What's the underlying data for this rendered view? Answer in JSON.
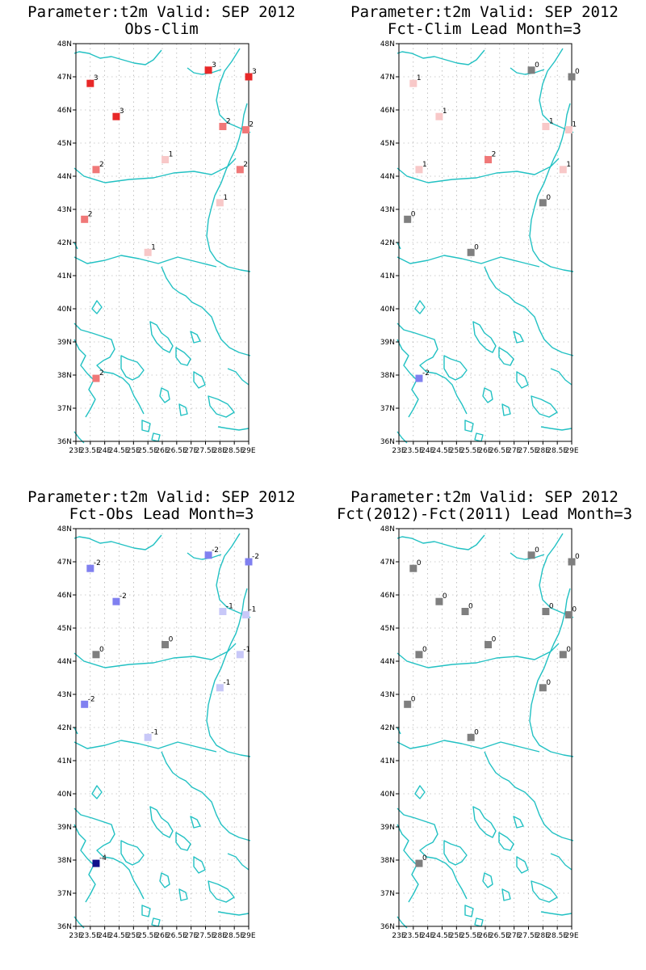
{
  "colors": {
    "coastline": "#22c1c3",
    "zero": "#7f7f7f",
    "warm": [
      "#f8c8c8",
      "#f07878",
      "#e82828"
    ],
    "cool": [
      "#c8c8f8",
      "#8080f0",
      "#5050e8",
      "#10108c"
    ]
  },
  "axes": {
    "lat_ticks": [
      "36N",
      "37N",
      "38N",
      "39N",
      "40N",
      "41N",
      "42N",
      "43N",
      "44N",
      "45N",
      "46N",
      "47N",
      "48N"
    ],
    "lon_ticks": [
      "23E",
      "23.5E",
      "24E",
      "24.5E",
      "25E",
      "25.5E",
      "26E",
      "26.5E",
      "27E",
      "27.5E",
      "28E",
      "28.5E",
      "29E"
    ],
    "lat_range": [
      36,
      48
    ],
    "lon_range": [
      23,
      29
    ]
  },
  "panels": [
    {
      "title_line1": "Parameter:t2m Valid: SEP 2012",
      "title_line2": "Obs-Clim",
      "stations": [
        {
          "lon": 23.5,
          "lat": 46.8,
          "value": "3"
        },
        {
          "lon": 24.4,
          "lat": 45.8,
          "value": "3"
        },
        {
          "lon": 27.6,
          "lat": 47.2,
          "value": "3"
        },
        {
          "lon": 29.0,
          "lat": 47.0,
          "value": "3"
        },
        {
          "lon": 28.1,
          "lat": 45.5,
          "value": "2"
        },
        {
          "lon": 28.9,
          "lat": 45.4,
          "value": "2"
        },
        {
          "lon": 23.7,
          "lat": 44.2,
          "value": "2"
        },
        {
          "lon": 26.1,
          "lat": 44.5,
          "value": "1"
        },
        {
          "lon": 28.7,
          "lat": 44.2,
          "value": "2"
        },
        {
          "lon": 28.0,
          "lat": 43.2,
          "value": "1"
        },
        {
          "lon": 23.3,
          "lat": 42.7,
          "value": "2"
        },
        {
          "lon": 25.5,
          "lat": 41.7,
          "value": "1"
        },
        {
          "lon": 23.7,
          "lat": 37.9,
          "value": "2"
        }
      ]
    },
    {
      "title_line1": "Parameter:t2m Valid: SEP 2012",
      "title_line2": "Fct-Clim Lead Month=3",
      "stations": [
        {
          "lon": 23.5,
          "lat": 46.8,
          "value": "1"
        },
        {
          "lon": 24.4,
          "lat": 45.8,
          "value": "1"
        },
        {
          "lon": 27.6,
          "lat": 47.2,
          "value": "0"
        },
        {
          "lon": 29.0,
          "lat": 47.0,
          "value": "0"
        },
        {
          "lon": 28.1,
          "lat": 45.5,
          "value": "1"
        },
        {
          "lon": 28.9,
          "lat": 45.4,
          "value": "1"
        },
        {
          "lon": 23.7,
          "lat": 44.2,
          "value": "1"
        },
        {
          "lon": 26.1,
          "lat": 44.5,
          "value": "2"
        },
        {
          "lon": 28.7,
          "lat": 44.2,
          "value": "1"
        },
        {
          "lon": 28.0,
          "lat": 43.2,
          "value": "0"
        },
        {
          "lon": 23.3,
          "lat": 42.7,
          "value": "0"
        },
        {
          "lon": 25.5,
          "lat": 41.7,
          "value": "0"
        },
        {
          "lon": 23.7,
          "lat": 37.9,
          "value": "-2"
        }
      ]
    },
    {
      "title_line1": "Parameter:t2m Valid: SEP 2012",
      "title_line2": "Fct-Obs Lead Month=3",
      "stations": [
        {
          "lon": 23.5,
          "lat": 46.8,
          "value": "-2"
        },
        {
          "lon": 24.4,
          "lat": 45.8,
          "value": "-2"
        },
        {
          "lon": 27.6,
          "lat": 47.2,
          "value": "-2"
        },
        {
          "lon": 29.0,
          "lat": 47.0,
          "value": "-2"
        },
        {
          "lon": 28.1,
          "lat": 45.5,
          "value": "-1"
        },
        {
          "lon": 28.9,
          "lat": 45.4,
          "value": "-1"
        },
        {
          "lon": 23.7,
          "lat": 44.2,
          "value": "0"
        },
        {
          "lon": 26.1,
          "lat": 44.5,
          "value": "0"
        },
        {
          "lon": 28.7,
          "lat": 44.2,
          "value": "-1"
        },
        {
          "lon": 28.0,
          "lat": 43.2,
          "value": "-1"
        },
        {
          "lon": 23.3,
          "lat": 42.7,
          "value": "-2"
        },
        {
          "lon": 25.5,
          "lat": 41.7,
          "value": "-1"
        },
        {
          "lon": 23.7,
          "lat": 37.9,
          "value": "-4"
        }
      ]
    },
    {
      "title_line1": "Parameter:t2m Valid: SEP 2012",
      "title_line2": "Fct(2012)-Fct(2011) Lead Month=3",
      "stations": [
        {
          "lon": 23.5,
          "lat": 46.8,
          "value": "0"
        },
        {
          "lon": 24.4,
          "lat": 45.8,
          "value": "0"
        },
        {
          "lon": 27.6,
          "lat": 47.2,
          "value": "0"
        },
        {
          "lon": 29.0,
          "lat": 47.0,
          "value": "0"
        },
        {
          "lon": 28.1,
          "lat": 45.5,
          "value": "0"
        },
        {
          "lon": 28.9,
          "lat": 45.4,
          "value": "0"
        },
        {
          "lon": 23.7,
          "lat": 44.2,
          "value": "0"
        },
        {
          "lon": 26.1,
          "lat": 44.5,
          "value": "0"
        },
        {
          "lon": 28.7,
          "lat": 44.2,
          "value": "0"
        },
        {
          "lon": 28.0,
          "lat": 43.2,
          "value": "0"
        },
        {
          "lon": 23.3,
          "lat": 42.7,
          "value": "0"
        },
        {
          "lon": 25.5,
          "lat": 41.7,
          "value": "0"
        },
        {
          "lon": 25.3,
          "lat": 45.5,
          "value": "0"
        },
        {
          "lon": 23.7,
          "lat": 37.9,
          "value": "0"
        }
      ]
    }
  ]
}
